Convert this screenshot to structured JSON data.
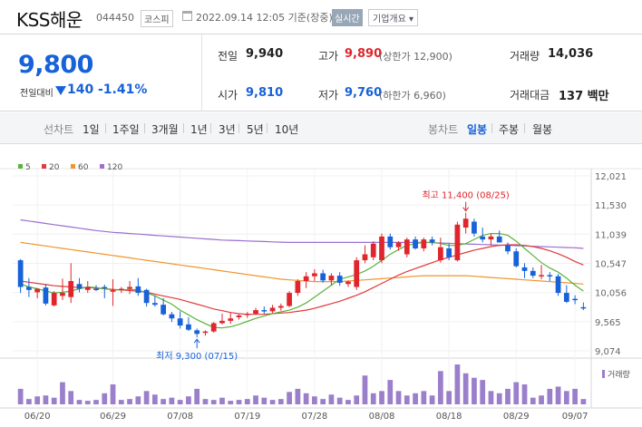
{
  "header": {
    "stock_name": "KSS해운",
    "stock_code": "044450",
    "market": "코스피",
    "timestamp": "2022.09.14 12:05 기준(장중)",
    "realtime_badge": "실시간",
    "company_info_button": "기업개요 ▾"
  },
  "quote": {
    "price": "9,800",
    "change_label": "전일대비",
    "change_amount": "140",
    "change_percent": "-1.41%",
    "prev_close_label": "전일",
    "prev_close": "9,940",
    "high_label": "고가",
    "high": "9,890",
    "upper_limit": "(상한가 12,900)",
    "volume_label": "거래량",
    "volume": "14,036",
    "open_label": "시가",
    "open": "9,810",
    "low_label": "저가",
    "low": "9,760",
    "lower_limit": "(하한가 6,960)",
    "value_label": "거래대금",
    "value": "137 백만"
  },
  "tabs": {
    "line_chart_label": "선차트",
    "periods": [
      "1일",
      "1주일",
      "3개월",
      "1년",
      "3년",
      "5년",
      "10년"
    ],
    "candle_chart_label": "봉차트",
    "candle_periods": [
      "일봉",
      "주봉",
      "월봉"
    ],
    "active_candle": "일봉"
  },
  "chart_data": {
    "type": "candlestick",
    "legend": [
      {
        "name": "5",
        "color": "#5ab33e"
      },
      {
        "name": "20",
        "color": "#e03a3a"
      },
      {
        "name": "60",
        "color": "#f0952b"
      },
      {
        "name": "120",
        "color": "#9b6fcf"
      }
    ],
    "y_ticks": [
      12021,
      11530,
      11039,
      10547,
      10056,
      9565,
      9074
    ],
    "ylim": [
      9074,
      12021
    ],
    "x_labels": [
      "06/20",
      "06/29",
      "07/08",
      "07/19",
      "07/28",
      "08/08",
      "08/18",
      "08/29",
      "09/07"
    ],
    "volume_label": "거래량",
    "annotation_high": "최고 11,400 (08/25)",
    "annotation_low": "최저 9,300 (07/15)",
    "candles": [
      {
        "o": 10600,
        "h": 10620,
        "l": 10050,
        "c": 10150
      },
      {
        "o": 10150,
        "h": 10300,
        "l": 9980,
        "c": 10100
      },
      {
        "o": 10060,
        "h": 10130,
        "l": 9960,
        "c": 10120
      },
      {
        "o": 10140,
        "h": 10200,
        "l": 9840,
        "c": 9870
      },
      {
        "o": 9840,
        "h": 10080,
        "l": 9820,
        "c": 10050
      },
      {
        "o": 10000,
        "h": 10290,
        "l": 9930,
        "c": 10050
      },
      {
        "o": 9980,
        "h": 10550,
        "l": 9880,
        "c": 10250
      },
      {
        "o": 10200,
        "h": 10300,
        "l": 10060,
        "c": 10120
      },
      {
        "o": 10100,
        "h": 10250,
        "l": 10050,
        "c": 10150
      },
      {
        "o": 10120,
        "h": 10180,
        "l": 10080,
        "c": 10100
      },
      {
        "o": 10150,
        "h": 10190,
        "l": 9960,
        "c": 10130
      },
      {
        "o": 10070,
        "h": 10280,
        "l": 9830,
        "c": 10100
      },
      {
        "o": 10110,
        "h": 10150,
        "l": 10050,
        "c": 10120
      },
      {
        "o": 10120,
        "h": 10250,
        "l": 10030,
        "c": 10150
      },
      {
        "o": 10160,
        "h": 10300,
        "l": 10000,
        "c": 10050
      },
      {
        "o": 10100,
        "h": 10120,
        "l": 9820,
        "c": 9880
      },
      {
        "o": 9880,
        "h": 10010,
        "l": 9820,
        "c": 9850
      },
      {
        "o": 9850,
        "h": 9960,
        "l": 9670,
        "c": 9690
      },
      {
        "o": 9690,
        "h": 9730,
        "l": 9560,
        "c": 9620
      },
      {
        "o": 9620,
        "h": 9740,
        "l": 9450,
        "c": 9500
      },
      {
        "o": 9520,
        "h": 9640,
        "l": 9410,
        "c": 9430
      },
      {
        "o": 9420,
        "h": 9450,
        "l": 9300,
        "c": 9360
      },
      {
        "o": 9380,
        "h": 9420,
        "l": 9330,
        "c": 9400
      },
      {
        "o": 9400,
        "h": 9560,
        "l": 9380,
        "c": 9540
      },
      {
        "o": 9540,
        "h": 9700,
        "l": 9520,
        "c": 9580
      },
      {
        "o": 9580,
        "h": 9720,
        "l": 9530,
        "c": 9620
      },
      {
        "o": 9640,
        "h": 9690,
        "l": 9600,
        "c": 9670
      },
      {
        "o": 9680,
        "h": 9730,
        "l": 9630,
        "c": 9700
      },
      {
        "o": 9700,
        "h": 9800,
        "l": 9680,
        "c": 9760
      },
      {
        "o": 9760,
        "h": 9820,
        "l": 9700,
        "c": 9740
      },
      {
        "o": 9740,
        "h": 9850,
        "l": 9710,
        "c": 9800
      },
      {
        "o": 9800,
        "h": 9870,
        "l": 9750,
        "c": 9830
      },
      {
        "o": 9830,
        "h": 10080,
        "l": 9810,
        "c": 10050
      },
      {
        "o": 10050,
        "h": 10280,
        "l": 10000,
        "c": 10250
      },
      {
        "o": 10250,
        "h": 10400,
        "l": 10130,
        "c": 10330
      },
      {
        "o": 10330,
        "h": 10450,
        "l": 10250,
        "c": 10380
      },
      {
        "o": 10380,
        "h": 10440,
        "l": 10220,
        "c": 10260
      },
      {
        "o": 10260,
        "h": 10380,
        "l": 10180,
        "c": 10340
      },
      {
        "o": 10340,
        "h": 10400,
        "l": 10170,
        "c": 10220
      },
      {
        "o": 10200,
        "h": 10260,
        "l": 10150,
        "c": 10240
      },
      {
        "o": 10150,
        "h": 10650,
        "l": 10100,
        "c": 10600
      },
      {
        "o": 10600,
        "h": 10850,
        "l": 10550,
        "c": 10700
      },
      {
        "o": 10650,
        "h": 10920,
        "l": 10600,
        "c": 10880
      },
      {
        "o": 10600,
        "h": 11050,
        "l": 10550,
        "c": 11000
      },
      {
        "o": 11000,
        "h": 11050,
        "l": 10780,
        "c": 10820
      },
      {
        "o": 10820,
        "h": 10920,
        "l": 10760,
        "c": 10900
      },
      {
        "o": 10700,
        "h": 10980,
        "l": 10650,
        "c": 10950
      },
      {
        "o": 10950,
        "h": 11000,
        "l": 10780,
        "c": 10800
      },
      {
        "o": 10800,
        "h": 10980,
        "l": 10750,
        "c": 10950
      },
      {
        "o": 10950,
        "h": 11000,
        "l": 10850,
        "c": 10900
      },
      {
        "o": 10600,
        "h": 10980,
        "l": 10560,
        "c": 10820
      },
      {
        "o": 10800,
        "h": 10880,
        "l": 10600,
        "c": 10650
      },
      {
        "o": 10600,
        "h": 11250,
        "l": 10580,
        "c": 11200
      },
      {
        "o": 11150,
        "h": 11400,
        "l": 11050,
        "c": 11300
      },
      {
        "o": 11250,
        "h": 11300,
        "l": 11000,
        "c": 11050
      },
      {
        "o": 11000,
        "h": 11150,
        "l": 10900,
        "c": 10950
      },
      {
        "o": 10950,
        "h": 11050,
        "l": 10850,
        "c": 11000
      },
      {
        "o": 11000,
        "h": 11100,
        "l": 10900,
        "c": 10900
      },
      {
        "o": 10850,
        "h": 10900,
        "l": 10700,
        "c": 10750
      },
      {
        "o": 10750,
        "h": 10800,
        "l": 10480,
        "c": 10500
      },
      {
        "o": 10480,
        "h": 10550,
        "l": 10300,
        "c": 10420
      },
      {
        "o": 10420,
        "h": 10480,
        "l": 10300,
        "c": 10340
      },
      {
        "o": 10350,
        "h": 10520,
        "l": 10280,
        "c": 10350
      },
      {
        "o": 10350,
        "h": 10400,
        "l": 10250,
        "c": 10330
      },
      {
        "o": 10330,
        "h": 10370,
        "l": 10000,
        "c": 10050
      },
      {
        "o": 10050,
        "h": 10180,
        "l": 9880,
        "c": 9900
      },
      {
        "o": 9950,
        "h": 10010,
        "l": 9860,
        "c": 9940
      },
      {
        "o": 9810,
        "h": 9890,
        "l": 9760,
        "c": 9800
      }
    ],
    "ma5": [
      10200,
      10150,
      10120,
      10080,
      10050,
      10060,
      10080,
      10120,
      10150,
      10140,
      10120,
      10100,
      10100,
      10110,
      10100,
      10050,
      10000,
      9930,
      9860,
      9760,
      9680,
      9600,
      9530,
      9470,
      9460,
      9480,
      9520,
      9570,
      9620,
      9660,
      9700,
      9730,
      9760,
      9810,
      9880,
      9980,
      10080,
      10180,
      10280,
      10320,
      10360,
      10420,
      10500,
      10600,
      10700,
      10780,
      10850,
      10880,
      10900,
      10900,
      10880,
      10850,
      10850,
      10880,
      10950,
      11020,
      11050,
      11050,
      11020,
      10920,
      10800,
      10680,
      10560,
      10470,
      10400,
      10300,
      10180,
      10080
    ],
    "ma20": [
      10250,
      10230,
      10210,
      10190,
      10170,
      10160,
      10150,
      10140,
      10140,
      10130,
      10120,
      10110,
      10100,
      10090,
      10080,
      10060,
      10030,
      10000,
      9970,
      9940,
      9900,
      9860,
      9820,
      9780,
      9750,
      9720,
      9700,
      9690,
      9690,
      9690,
      9700,
      9710,
      9720,
      9740,
      9760,
      9790,
      9830,
      9870,
      9910,
      9960,
      10010,
      10070,
      10140,
      10210,
      10280,
      10350,
      10410,
      10460,
      10510,
      10560,
      10610,
      10650,
      10690,
      10730,
      10770,
      10800,
      10830,
      10850,
      10860,
      10860,
      10850,
      10830,
      10800,
      10760,
      10710,
      10650,
      10580,
      10520
    ],
    "ma60": [
      10900,
      10880,
      10860,
      10840,
      10820,
      10800,
      10780,
      10760,
      10740,
      10720,
      10700,
      10680,
      10660,
      10640,
      10620,
      10600,
      10580,
      10560,
      10540,
      10520,
      10500,
      10480,
      10460,
      10440,
      10420,
      10400,
      10380,
      10360,
      10340,
      10320,
      10300,
      10280,
      10270,
      10260,
      10250,
      10240,
      10240,
      10240,
      10240,
      10250,
      10260,
      10270,
      10280,
      10290,
      10300,
      10310,
      10320,
      10330,
      10340,
      10340,
      10340,
      10340,
      10340,
      10340,
      10330,
      10320,
      10310,
      10300,
      10290,
      10280,
      10270,
      10260,
      10250,
      10240,
      10230,
      10220,
      10210,
      10200
    ],
    "ma120": [
      11280,
      11260,
      11240,
      11220,
      11200,
      11180,
      11160,
      11140,
      11120,
      11100,
      11085,
      11070,
      11060,
      11050,
      11040,
      11030,
      11020,
      11010,
      11000,
      10990,
      10980,
      10970,
      10960,
      10950,
      10940,
      10935,
      10930,
      10925,
      10920,
      10915,
      10910,
      10905,
      10900,
      10900,
      10900,
      10900,
      10900,
      10900,
      10900,
      10900,
      10900,
      10900,
      10900,
      10900,
      10900,
      10900,
      10900,
      10900,
      10900,
      10895,
      10890,
      10885,
      10880,
      10875,
      10870,
      10865,
      10860,
      10855,
      10850,
      10845,
      10840,
      10835,
      10830,
      10825,
      10820,
      10815,
      10810,
      10800
    ],
    "volumes": [
      0.35,
      0.12,
      0.18,
      0.2,
      0.15,
      0.5,
      0.3,
      0.1,
      0.08,
      0.1,
      0.25,
      0.45,
      0.1,
      0.12,
      0.18,
      0.3,
      0.22,
      0.12,
      0.15,
      0.1,
      0.18,
      0.35,
      0.12,
      0.1,
      0.15,
      0.08,
      0.1,
      0.12,
      0.2,
      0.15,
      0.1,
      0.12,
      0.28,
      0.35,
      0.25,
      0.18,
      0.12,
      0.22,
      0.15,
      0.1,
      0.2,
      0.65,
      0.25,
      0.3,
      0.55,
      0.3,
      0.2,
      0.25,
      0.3,
      0.2,
      0.75,
      0.3,
      0.9,
      0.7,
      0.6,
      0.55,
      0.3,
      0.25,
      0.35,
      0.5,
      0.45,
      0.15,
      0.2,
      0.35,
      0.4,
      0.3,
      0.35,
      0.12
    ]
  }
}
